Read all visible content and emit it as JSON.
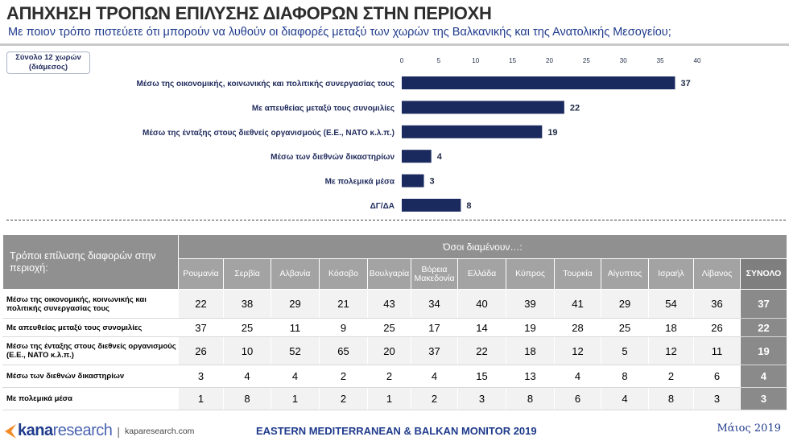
{
  "header": {
    "title": "ΑΠΗΧΗΣΗ ΤΡΟΠΩΝ ΕΠΙΛΥΣΗΣ ΔΙΑΦΟΡΩΝ ΣΤΗΝ ΠΕΡΙΟΧΗ",
    "subtitle": "Με ποιον τρόπο πιστεύετε ότι μπορούν να λυθούν οι διαφορές μεταξύ των χωρών της Βαλκανικής και της Ανατολικής Μεσογείου;",
    "sample_line1": "Σύνολο 12 χωρών",
    "sample_line2": "(διάμεσος)"
  },
  "chart_data": {
    "type": "bar",
    "orientation": "horizontal",
    "categories": [
      "Μέσω της οικονομικής, κοινωνικής και πολιτικής συνεργασίας τους",
      "Με απευθείας μεταξύ τους συνομιλίες",
      "Μέσω της ένταξης στους διεθνείς οργανισμούς (Ε.Ε., ΝΑΤΟ κ.λ.π.)",
      "Μέσω των διεθνών δικαστηρίων",
      "Με πολεμικά μέσα",
      "ΔΓ/ΔΑ"
    ],
    "values": [
      37,
      22,
      19,
      4,
      3,
      8
    ],
    "xlim": [
      0,
      40
    ],
    "ticks": [
      0,
      5,
      10,
      15,
      20,
      25,
      30,
      35,
      40
    ],
    "bar_color": "#1a2a5e",
    "grid": false
  },
  "table": {
    "corner_label": "Τρόποι επίλυσης διαφορών στην περιοχή:",
    "group_label": "Όσοι διαμένουν…:",
    "columns": [
      "Ρουμανία",
      "Σερβία",
      "Αλβανία",
      "Κόσοβο",
      "Βουλγαρία",
      "Βόρεια Μακεδονία",
      "Ελλάδα",
      "Κύπρος",
      "Τουρκία",
      "Αίγυπτος",
      "Ισραήλ",
      "Λίβανος",
      "ΣΥΝΟΛΟ"
    ],
    "rows": [
      {
        "label": "Μέσω της οικονομικής, κοινωνικής και πολιτικής συνεργασίας τους",
        "values": [
          "22",
          "38",
          "29",
          "21",
          "43",
          "34",
          "40",
          "39",
          "41",
          "29",
          "54",
          "36",
          "37"
        ]
      },
      {
        "label": "Με απευθείας μεταξύ τους συνομιλίες",
        "values": [
          "37",
          "25",
          "11",
          "9",
          "25",
          "17",
          "14",
          "19",
          "28",
          "25",
          "18",
          "26",
          "22"
        ]
      },
      {
        "label": "Μέσω της ένταξης στους διεθνείς οργανισμούς (Ε.Ε., ΝΑΤΟ κ.λ.π.)",
        "values": [
          "26",
          "10",
          "52",
          "65",
          "20",
          "37",
          "22",
          "18",
          "12",
          "5",
          "12",
          "11",
          "19"
        ]
      },
      {
        "label": "Μέσω των διεθνών δικαστηρίων",
        "values": [
          "3",
          "4",
          "4",
          "2",
          "2",
          "4",
          "15",
          "13",
          "4",
          "8",
          "2",
          "6",
          "4"
        ]
      },
      {
        "label": "Με πολεμικά μέσα",
        "values": [
          "1",
          "8",
          "1",
          "2",
          "1",
          "2",
          "3",
          "8",
          "6",
          "4",
          "8",
          "3",
          "3"
        ]
      }
    ]
  },
  "footer": {
    "logo_kana": "kana",
    "logo_research": "research",
    "separator": "|",
    "url": "kaparesearch.com",
    "center": "EASTERN MEDITERRANEAN & BALKAN MONITOR 2019",
    "date": "Μάιος 2019"
  },
  "colors": {
    "brand": "#1f3b8c",
    "bar": "#1a2a5e",
    "table_header": "#909090",
    "total_cell": "#8a8a8a"
  }
}
